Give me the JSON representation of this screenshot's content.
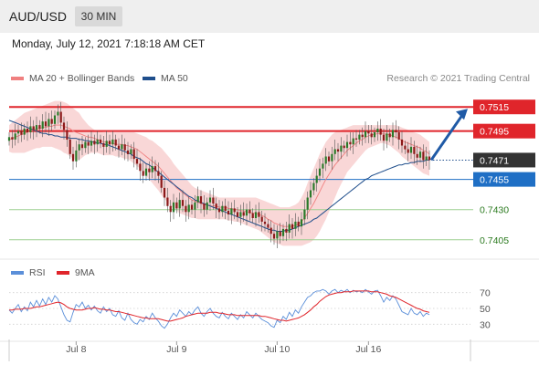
{
  "header": {
    "symbol": "AUD/USD",
    "timeframe": "30 MIN"
  },
  "datetime": "Monday, July 12, 2021 7:18:18 AM CET",
  "price_legend": {
    "ma20_label": "MA 20 + Bollinger Bands",
    "ma50_label": "MA 50",
    "ma20_color": "#f08080",
    "ma50_color": "#1f4e8c",
    "copyright": "Research © 2021 Trading Central"
  },
  "rsi_legend": {
    "rsi_label": "RSI",
    "ma9_label": "9MA",
    "rsi_color": "#5b8fd9",
    "ma9_color": "#e0252b"
  },
  "colors": {
    "resistance": "#e0252b",
    "support_blue": "#1f6fc5",
    "support_green": "#9ccf8f",
    "current_price": "#333333",
    "candle_up": "#2a7a2a",
    "candle_down": "#8b1a1a",
    "band_fill": "#f7c9c9",
    "arrow": "#1f5aa6"
  },
  "chart_data": [
    {
      "type": "candlestick",
      "ylim": [
        0.7392,
        0.7528
      ],
      "levels": [
        {
          "label": "0.7515",
          "value": 0.7515,
          "style": "resistance"
        },
        {
          "label": "0.7495",
          "value": 0.7495,
          "style": "resistance"
        },
        {
          "label": "0.7471",
          "value": 0.7471,
          "style": "current"
        },
        {
          "label": "0.7455",
          "value": 0.7455,
          "style": "support_blue"
        },
        {
          "label": "0.7430",
          "value": 0.743,
          "style": "support_green"
        },
        {
          "label": "0.7405",
          "value": 0.7405,
          "style": "support_green"
        }
      ],
      "close": [
        0.749,
        0.7488,
        0.7493,
        0.7495,
        0.7492,
        0.7497,
        0.7494,
        0.7499,
        0.7496,
        0.75,
        0.7497,
        0.7503,
        0.7499,
        0.7505,
        0.7501,
        0.7508,
        0.7511,
        0.7502,
        0.7496,
        0.7488,
        0.7476,
        0.747,
        0.7479,
        0.7484,
        0.7481,
        0.7486,
        0.7483,
        0.7487,
        0.7484,
        0.7488,
        0.7485,
        0.7482,
        0.7487,
        0.7484,
        0.7488,
        0.7483,
        0.748,
        0.7484,
        0.7479,
        0.7476,
        0.748,
        0.7472,
        0.7468,
        0.7462,
        0.7458,
        0.7464,
        0.7461,
        0.7466,
        0.7462,
        0.7458,
        0.7448,
        0.744,
        0.7433,
        0.7428,
        0.7436,
        0.7431,
        0.7438,
        0.7433,
        0.7428,
        0.7434,
        0.743,
        0.7436,
        0.7441,
        0.7435,
        0.743,
        0.7436,
        0.744,
        0.7435,
        0.7431,
        0.7428,
        0.7433,
        0.7429,
        0.7426,
        0.7431,
        0.7428,
        0.7424,
        0.7428,
        0.7425,
        0.743,
        0.7427,
        0.7423,
        0.7428,
        0.7424,
        0.742,
        0.7418,
        0.7415,
        0.741,
        0.7406,
        0.7412,
        0.7408,
        0.7414,
        0.7411,
        0.7418,
        0.7414,
        0.742,
        0.7416,
        0.7422,
        0.743,
        0.744,
        0.7446,
        0.7452,
        0.7458,
        0.7464,
        0.7468,
        0.7474,
        0.747,
        0.7476,
        0.748,
        0.7478,
        0.7483,
        0.7481,
        0.7486,
        0.7484,
        0.7489,
        0.7488,
        0.7492,
        0.749,
        0.7495,
        0.7493,
        0.749,
        0.7494,
        0.7497,
        0.7492,
        0.7487,
        0.7493,
        0.749,
        0.7496,
        0.7494,
        0.7488,
        0.7483,
        0.748,
        0.7477,
        0.7482,
        0.7476,
        0.7473,
        0.7478,
        0.7471,
        0.7474,
        0.7471
      ],
      "ma20": [
        0.7488,
        0.7489,
        0.749,
        0.7491,
        0.7492,
        0.7493,
        0.7494,
        0.7495,
        0.7496,
        0.7497,
        0.7497,
        0.7498,
        0.7498,
        0.7499,
        0.7499,
        0.75,
        0.75,
        0.75,
        0.7499,
        0.7498,
        0.7497,
        0.7495,
        0.7494,
        0.7493,
        0.7492,
        0.7491,
        0.749,
        0.749,
        0.7489,
        0.7488,
        0.7487,
        0.7486,
        0.7486,
        0.7485,
        0.7485,
        0.7484,
        0.7484,
        0.7484,
        0.7483,
        0.7483,
        0.7482,
        0.7481,
        0.748,
        0.7478,
        0.7476,
        0.7474,
        0.7472,
        0.747,
        0.7468,
        0.7466,
        0.7463,
        0.746,
        0.7457,
        0.7454,
        0.7451,
        0.7448,
        0.7446,
        0.7444,
        0.7442,
        0.744,
        0.7438,
        0.7437,
        0.7436,
        0.7435,
        0.7434,
        0.7434,
        0.7433,
        0.7433,
        0.7433,
        0.7432,
        0.7432,
        0.7432,
        0.7431,
        0.7431,
        0.743,
        0.743,
        0.7429,
        0.7429,
        0.7428,
        0.7428,
        0.7427,
        0.7427,
        0.7426,
        0.7425,
        0.7424,
        0.7422,
        0.7421,
        0.7419,
        0.7418,
        0.7417,
        0.7416,
        0.7416,
        0.7416,
        0.7416,
        0.7417,
        0.7418,
        0.742,
        0.7423,
        0.7427,
        0.7431,
        0.7435,
        0.744,
        0.7445,
        0.745,
        0.7455,
        0.7459,
        0.7463,
        0.7467,
        0.747,
        0.7473,
        0.7476,
        0.7479,
        0.7481,
        0.7483,
        0.7485,
        0.7487,
        0.7488,
        0.749,
        0.7491,
        0.7492,
        0.7492,
        0.7493,
        0.7493,
        0.7493,
        0.7492,
        0.7492,
        0.7491,
        0.749,
        0.7489,
        0.7487,
        0.7486,
        0.7485,
        0.7484,
        0.7483,
        0.7482,
        0.7481,
        0.7479,
        0.7478,
        0.7476
      ],
      "bb_upper": [
        0.75,
        0.7502,
        0.7504,
        0.7506,
        0.7508,
        0.751,
        0.7511,
        0.7512,
        0.7513,
        0.7514,
        0.7515,
        0.7516,
        0.7517,
        0.7518,
        0.7519,
        0.752,
        0.752,
        0.752,
        0.7519,
        0.7518,
        0.7516,
        0.7514,
        0.7512,
        0.751,
        0.7506,
        0.7503,
        0.75,
        0.7498,
        0.7496,
        0.7495,
        0.7495,
        0.7494,
        0.7494,
        0.7494,
        0.7494,
        0.7494,
        0.7494,
        0.7494,
        0.7494,
        0.7494,
        0.7494,
        0.7494,
        0.7493,
        0.7492,
        0.7491,
        0.749,
        0.7488,
        0.7487,
        0.7485,
        0.7483,
        0.7481,
        0.7478,
        0.7475,
        0.7472,
        0.7468,
        0.7465,
        0.7462,
        0.7459,
        0.7456,
        0.7453,
        0.745,
        0.7448,
        0.7447,
        0.7446,
        0.7445,
        0.7444,
        0.7443,
        0.7442,
        0.7441,
        0.744,
        0.744,
        0.744,
        0.744,
        0.744,
        0.744,
        0.744,
        0.744,
        0.744,
        0.744,
        0.744,
        0.744,
        0.744,
        0.7439,
        0.7438,
        0.7437,
        0.7436,
        0.7435,
        0.7434,
        0.7433,
        0.7432,
        0.7432,
        0.7432,
        0.7432,
        0.7433,
        0.7434,
        0.7436,
        0.744,
        0.7445,
        0.7452,
        0.7458,
        0.7464,
        0.747,
        0.7476,
        0.7481,
        0.7486,
        0.7489,
        0.7492,
        0.7494,
        0.7495,
        0.7496,
        0.7497,
        0.7498,
        0.7499,
        0.75,
        0.75,
        0.75,
        0.75,
        0.75,
        0.75,
        0.75,
        0.75,
        0.75,
        0.75,
        0.75,
        0.75,
        0.75,
        0.75,
        0.75,
        0.7499,
        0.7498,
        0.7497,
        0.7496,
        0.7495,
        0.7494,
        0.7493,
        0.7492,
        0.749,
        0.7488,
        0.7486
      ],
      "bb_lower": [
        0.7478,
        0.7477,
        0.7477,
        0.7477,
        0.7477,
        0.7477,
        0.7478,
        0.7479,
        0.748,
        0.7481,
        0.7481,
        0.7482,
        0.7482,
        0.7482,
        0.7482,
        0.7481,
        0.748,
        0.7479,
        0.7477,
        0.7476,
        0.7474,
        0.7472,
        0.7471,
        0.7471,
        0.7473,
        0.7475,
        0.7476,
        0.7477,
        0.7477,
        0.7477,
        0.7476,
        0.7475,
        0.7475,
        0.7475,
        0.7475,
        0.7474,
        0.7474,
        0.7473,
        0.7472,
        0.7472,
        0.747,
        0.7468,
        0.7466,
        0.7464,
        0.7461,
        0.7458,
        0.7455,
        0.7452,
        0.7449,
        0.7446,
        0.7442,
        0.7439,
        0.7436,
        0.7433,
        0.7431,
        0.7429,
        0.7427,
        0.7426,
        0.7425,
        0.7424,
        0.7423,
        0.7423,
        0.7422,
        0.7422,
        0.7422,
        0.7422,
        0.7422,
        0.7422,
        0.7422,
        0.7422,
        0.7422,
        0.7422,
        0.7421,
        0.7421,
        0.742,
        0.742,
        0.7419,
        0.7418,
        0.7417,
        0.7416,
        0.7415,
        0.7414,
        0.7413,
        0.7411,
        0.7409,
        0.7407,
        0.7405,
        0.7403,
        0.7402,
        0.7401,
        0.74,
        0.74,
        0.74,
        0.74,
        0.74,
        0.74,
        0.74,
        0.7401,
        0.7402,
        0.7403,
        0.7405,
        0.7408,
        0.7412,
        0.7417,
        0.7422,
        0.7428,
        0.7434,
        0.744,
        0.7446,
        0.7451,
        0.7456,
        0.7461,
        0.7464,
        0.7467,
        0.747,
        0.7473,
        0.7476,
        0.7479,
        0.7481,
        0.7482,
        0.7483,
        0.7484,
        0.7485,
        0.7485,
        0.7484,
        0.7483,
        0.7481,
        0.7479,
        0.7477,
        0.7474,
        0.7472,
        0.747,
        0.7468,
        0.7466,
        0.7464,
        0.7462,
        0.746,
        0.7459,
        0.7458
      ],
      "ma50": [
        0.7504,
        0.7503,
        0.7502,
        0.7501,
        0.75,
        0.7499,
        0.7498,
        0.7497,
        0.7496,
        0.7495,
        0.7494,
        0.7493,
        0.7493,
        0.7492,
        0.7492,
        0.7491,
        0.7491,
        0.749,
        0.749,
        0.749,
        0.7489,
        0.7489,
        0.7489,
        0.7488,
        0.7488,
        0.7487,
        0.7487,
        0.7486,
        0.7486,
        0.7485,
        0.7485,
        0.7484,
        0.7484,
        0.7483,
        0.7482,
        0.7481,
        0.748,
        0.7479,
        0.7478,
        0.7477,
        0.7476,
        0.7474,
        0.7473,
        0.7472,
        0.747,
        0.7468,
        0.7467,
        0.7465,
        0.7463,
        0.7461,
        0.7459,
        0.7457,
        0.7455,
        0.7453,
        0.7451,
        0.7449,
        0.7447,
        0.7445,
        0.7443,
        0.7441,
        0.744,
        0.7438,
        0.7437,
        0.7436,
        0.7435,
        0.7434,
        0.7433,
        0.7432,
        0.7431,
        0.743,
        0.7429,
        0.7428,
        0.7427,
        0.7426,
        0.7425,
        0.7424,
        0.7423,
        0.7422,
        0.7421,
        0.742,
        0.7419,
        0.7418,
        0.7417,
        0.7416,
        0.7415,
        0.7414,
        0.7413,
        0.7413,
        0.7412,
        0.7412,
        0.7412,
        0.7413,
        0.7413,
        0.7414,
        0.7415,
        0.7416,
        0.7417,
        0.7418,
        0.7419,
        0.742,
        0.7422,
        0.7423,
        0.7425,
        0.7427,
        0.7429,
        0.7431,
        0.7433,
        0.7435,
        0.7437,
        0.7439,
        0.7441,
        0.7443,
        0.7445,
        0.7447,
        0.7449,
        0.7451,
        0.7453,
        0.7455,
        0.7456,
        0.7458,
        0.7459,
        0.746,
        0.7461,
        0.7462,
        0.7463,
        0.7464,
        0.7465,
        0.7466,
        0.7467,
        0.7467,
        0.7468,
        0.7468,
        0.7469,
        0.7469,
        0.747,
        0.747,
        0.747,
        0.7471,
        0.7471
      ],
      "projection_target": 0.7515
    },
    {
      "type": "line",
      "ylim": [
        20,
        80
      ],
      "y_ticks": [
        "70",
        "50",
        "30"
      ],
      "y_tick_values": [
        70,
        50,
        30
      ],
      "x_ticks": [
        "Jul 8",
        "Jul 9",
        "Jul 10",
        "Jul 16"
      ],
      "x_tick_index": [
        22,
        55,
        88,
        118
      ],
      "rsi": [
        48,
        44,
        50,
        55,
        46,
        52,
        47,
        58,
        52,
        60,
        53,
        62,
        55,
        64,
        58,
        66,
        62,
        52,
        42,
        35,
        33,
        45,
        55,
        52,
        58,
        50,
        54,
        48,
        53,
        47,
        44,
        52,
        46,
        50,
        42,
        40,
        47,
        38,
        35,
        44,
        36,
        32,
        30,
        36,
        33,
        40,
        36,
        44,
        38,
        34,
        28,
        25,
        30,
        38,
        44,
        40,
        48,
        44,
        40,
        46,
        42,
        48,
        52,
        44,
        40,
        46,
        50,
        44,
        40,
        38,
        45,
        40,
        37,
        44,
        40,
        36,
        42,
        38,
        46,
        42,
        38,
        44,
        40,
        36,
        34,
        32,
        28,
        26,
        35,
        32,
        40,
        36,
        45,
        40,
        48,
        44,
        52,
        58,
        64,
        66,
        70,
        72,
        72,
        74,
        72,
        68,
        72,
        74,
        70,
        73,
        71,
        74,
        70,
        73,
        71,
        72,
        70,
        74,
        71,
        68,
        72,
        73,
        66,
        58,
        64,
        60,
        66,
        62,
        54,
        46,
        44,
        42,
        50,
        44,
        42,
        46,
        40,
        44,
        42
      ],
      "ma9": [
        48,
        48,
        49,
        49,
        49,
        50,
        50,
        50,
        51,
        52,
        52,
        53,
        54,
        55,
        56,
        57,
        58,
        57,
        55,
        52,
        50,
        49,
        48,
        48,
        48,
        49,
        50,
        50,
        51,
        50,
        49,
        49,
        48,
        48,
        47,
        46,
        46,
        45,
        44,
        43,
        42,
        41,
        40,
        39,
        38,
        38,
        37,
        37,
        37,
        37,
        36,
        35,
        34,
        34,
        35,
        36,
        37,
        38,
        40,
        41,
        42,
        43,
        44,
        44,
        44,
        44,
        45,
        45,
        45,
        44,
        44,
        43,
        42,
        42,
        42,
        41,
        41,
        41,
        41,
        41,
        41,
        41,
        41,
        40,
        40,
        39,
        38,
        37,
        36,
        35,
        35,
        34,
        35,
        36,
        37,
        38,
        40,
        42,
        45,
        48,
        52,
        55,
        59,
        62,
        65,
        67,
        68,
        69,
        70,
        70,
        71,
        71,
        71,
        72,
        72,
        72,
        72,
        72,
        72,
        71,
        71,
        71,
        70,
        69,
        68,
        66,
        65,
        64,
        62,
        60,
        58,
        56,
        54,
        52,
        50,
        49,
        47,
        46,
        45
      ]
    }
  ]
}
